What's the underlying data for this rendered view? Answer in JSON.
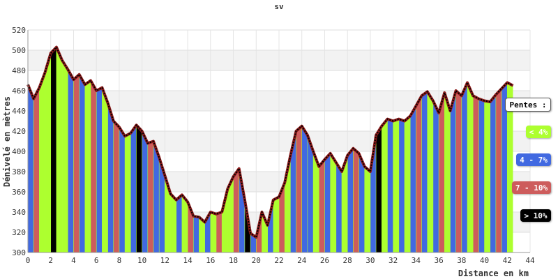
{
  "chart_data": {
    "type": "area",
    "title": "sv",
    "xlabel": "Distance en km",
    "ylabel": "Dénivelé en mètres",
    "xlim": [
      0,
      44
    ],
    "ylim": [
      300,
      520
    ],
    "x_ticks": [
      "0",
      "2",
      "4",
      "6",
      "8",
      "10",
      "12",
      "14",
      "16",
      "18",
      "20",
      "22",
      "24",
      "26",
      "28",
      "30",
      "32",
      "34",
      "36",
      "38",
      "40",
      "42",
      "44"
    ],
    "y_ticks": [
      "300",
      "320",
      "340",
      "360",
      "380",
      "400",
      "420",
      "440",
      "460",
      "480",
      "500",
      "520"
    ],
    "grid": true,
    "legend_placement": "right",
    "legend_title": "Pentes :",
    "legend": [
      {
        "label": "< 4%",
        "color": "#adff2f"
      },
      {
        "label": "4 - 7%",
        "color": "#4169e1"
      },
      {
        "label": "7 - 10%",
        "color": "#cd5c5c"
      },
      {
        "label": "> 10%",
        "color": "#000000"
      }
    ],
    "x": [
      0,
      0.5,
      1,
      1.5,
      2,
      2.5,
      3,
      3.5,
      4,
      4.5,
      5,
      5.5,
      6,
      6.5,
      7,
      7.5,
      8,
      8.5,
      9,
      9.5,
      10,
      10.5,
      11,
      11.5,
      12,
      12.5,
      13,
      13.5,
      14,
      14.5,
      15,
      15.5,
      16,
      16.5,
      17,
      17.5,
      18,
      18.5,
      19,
      19.5,
      20,
      20.5,
      21,
      21.5,
      22,
      22.5,
      23,
      23.5,
      24,
      24.5,
      25,
      25.5,
      26,
      26.5,
      27,
      27.5,
      28,
      28.5,
      29,
      29.5,
      30,
      30.5,
      31,
      31.5,
      32,
      32.5,
      33,
      33.5,
      34,
      34.5,
      35,
      35.5,
      36,
      36.5,
      37,
      37.5,
      38,
      38.5,
      39,
      39.5,
      40,
      40.5,
      41,
      41.5,
      42,
      42.5
    ],
    "y": [
      466,
      452,
      463,
      478,
      497,
      503,
      490,
      481,
      471,
      476,
      466,
      470,
      460,
      463,
      448,
      430,
      424,
      415,
      418,
      426,
      420,
      408,
      410,
      394,
      376,
      358,
      352,
      357,
      350,
      336,
      335,
      330,
      340,
      338,
      340,
      363,
      375,
      383,
      352,
      319,
      315,
      340,
      327,
      352,
      355,
      369,
      396,
      420,
      425,
      416,
      400,
      385,
      392,
      398,
      389,
      380,
      396,
      403,
      398,
      385,
      380,
      416,
      425,
      432,
      430,
      432,
      430,
      435,
      445,
      455,
      459,
      450,
      438,
      458,
      440,
      460,
      455,
      468,
      455,
      452,
      450,
      449,
      456,
      462,
      468,
      465
    ],
    "slope_class": [
      1,
      2,
      0,
      0,
      3,
      0,
      0,
      1,
      2,
      1,
      0,
      2,
      1,
      0,
      1,
      2,
      1,
      0,
      1,
      3,
      1,
      2,
      1,
      1,
      0,
      0,
      1,
      0,
      2,
      1,
      0,
      1,
      0,
      2,
      0,
      0,
      2,
      1,
      3,
      1,
      2,
      0,
      1,
      0,
      2,
      0,
      1,
      2,
      1,
      1,
      0,
      2,
      1,
      0,
      1,
      0,
      1,
      2,
      1,
      0,
      1,
      3,
      0,
      1,
      0,
      1,
      0,
      1,
      2,
      1,
      0,
      1,
      2,
      0,
      1,
      2,
      1,
      0,
      2,
      1,
      0,
      1,
      2,
      1,
      0,
      2
    ]
  }
}
